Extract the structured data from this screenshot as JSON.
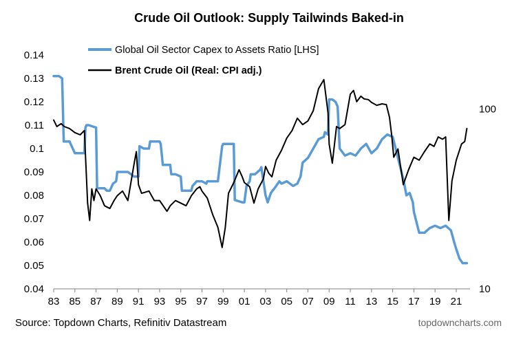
{
  "chart_data": {
    "type": "line",
    "title": "Crude Oil Outlook: Supply Tailwinds Baked-in",
    "source": "Source: Topdown Charts, Refinitiv Datastream",
    "brand": "topdowncharts.com",
    "x_ticks": [
      "83",
      "85",
      "87",
      "89",
      "91",
      "93",
      "95",
      "97",
      "99",
      "01",
      "03",
      "05",
      "07",
      "09",
      "11",
      "13",
      "15",
      "17",
      "19",
      "21"
    ],
    "x_range": [
      1983,
      2022.3
    ],
    "y_left": {
      "ticks": [
        "0.04",
        "0.05",
        "0.06",
        "0.07",
        "0.08",
        "0.09",
        "0.1",
        "0.11",
        "0.12",
        "0.13",
        "0.14"
      ],
      "range": [
        0.04,
        0.14
      ]
    },
    "y_right": {
      "ticks": [
        "10",
        "100"
      ],
      "range": [
        10,
        200
      ],
      "scale": "log"
    },
    "legend_placement": "top-center",
    "grid": false,
    "series": [
      {
        "name": "Global Oil Sector Capex to Assets Ratio [LHS]",
        "axis": "left",
        "color": "#5B9BD5",
        "x": [
          1983.0,
          1983.5,
          1983.8,
          1983.95,
          1984.5,
          1984.6,
          1985.0,
          1985.9,
          1986.0,
          1986.1,
          1986.3,
          1987.0,
          1987.1,
          1987.8,
          1988.0,
          1988.3,
          1988.6,
          1988.9,
          1989.0,
          1990.0,
          1990.3,
          1990.6,
          1991.0,
          1991.1,
          1991.5,
          1992.0,
          1992.1,
          1993.0,
          1993.1,
          1993.3,
          1993.5,
          1994.0,
          1994.1,
          1994.5,
          1995.0,
          1995.1,
          1996.0,
          1996.1,
          1996.5,
          1997.0,
          1997.4,
          1997.5,
          1998.0,
          1998.5,
          1998.9,
          1999.0,
          1999.3,
          2000.0,
          2000.1,
          2000.8,
          2001.0,
          2001.2,
          2001.5,
          2001.6,
          2002.0,
          2002.5,
          2002.6,
          2003.0,
          2003.2,
          2003.5,
          2004.0,
          2004.3,
          2004.5,
          2005.0,
          2005.3,
          2005.6,
          2006.0,
          2006.3,
          2006.5,
          2007.0,
          2007.5,
          2008.0,
          2008.5,
          2008.6,
          2008.9,
          2009.0,
          2009.3,
          2009.6,
          2009.8,
          2010.0,
          2010.5,
          2011.0,
          2011.5,
          2012.0,
          2012.5,
          2013.0,
          2013.5,
          2014.0,
          2014.5,
          2015.0,
          2015.5,
          2016.0,
          2016.3,
          2016.6,
          2016.9,
          2017.0,
          2017.5,
          2018.0,
          2018.5,
          2019.0,
          2019.5,
          2020.0,
          2020.5,
          2020.8,
          2021.0,
          2021.3,
          2021.6,
          2022.0
        ],
        "values": [
          0.131,
          0.131,
          0.13,
          0.103,
          0.103,
          0.102,
          0.098,
          0.098,
          0.109,
          0.11,
          0.11,
          0.109,
          0.083,
          0.083,
          0.082,
          0.082,
          0.085,
          0.086,
          0.09,
          0.09,
          0.089,
          0.088,
          0.088,
          0.101,
          0.1,
          0.1,
          0.103,
          0.103,
          0.102,
          0.093,
          0.093,
          0.093,
          0.089,
          0.089,
          0.088,
          0.082,
          0.082,
          0.084,
          0.086,
          0.086,
          0.085,
          0.086,
          0.086,
          0.086,
          0.101,
          0.102,
          0.102,
          0.102,
          0.078,
          0.077,
          0.077,
          0.084,
          0.086,
          0.089,
          0.089,
          0.091,
          0.092,
          0.08,
          0.077,
          0.081,
          0.084,
          0.086,
          0.085,
          0.086,
          0.085,
          0.084,
          0.085,
          0.088,
          0.094,
          0.096,
          0.1,
          0.104,
          0.105,
          0.107,
          0.106,
          0.121,
          0.121,
          0.12,
          0.118,
          0.1,
          0.097,
          0.098,
          0.097,
          0.1,
          0.102,
          0.098,
          0.1,
          0.104,
          0.106,
          0.105,
          0.096,
          0.087,
          0.08,
          0.081,
          0.077,
          0.073,
          0.064,
          0.064,
          0.066,
          0.067,
          0.066,
          0.067,
          0.065,
          0.06,
          0.057,
          0.053,
          0.051,
          0.051
        ]
      },
      {
        "name": "Brent Crude Oil (Real: CPI adj.)",
        "axis": "right",
        "color": "#000000",
        "x": [
          1983.0,
          1983.3,
          1983.7,
          1984.0,
          1984.5,
          1985.0,
          1985.5,
          1985.9,
          1986.2,
          1986.4,
          1986.6,
          1986.8,
          1987.0,
          1987.4,
          1987.8,
          1988.3,
          1988.7,
          1989.0,
          1989.5,
          1990.0,
          1990.6,
          1990.8,
          1991.0,
          1991.3,
          1992.0,
          1992.5,
          1993.0,
          1993.7,
          1994.0,
          1994.5,
          1995.0,
          1995.5,
          1996.0,
          1996.5,
          1996.8,
          1997.0,
          1997.5,
          1998.0,
          1998.5,
          1998.9,
          1999.2,
          1999.5,
          2000.0,
          2000.5,
          2000.8,
          2001.0,
          2001.5,
          2001.9,
          2002.3,
          2002.8,
          2003.0,
          2003.3,
          2003.6,
          2004.0,
          2004.5,
          2005.0,
          2005.5,
          2006.0,
          2006.5,
          2007.0,
          2007.5,
          2008.0,
          2008.5,
          2008.9,
          2009.0,
          2009.3,
          2009.7,
          2010.0,
          2010.5,
          2011.0,
          2011.3,
          2011.6,
          2012.0,
          2012.3,
          2012.7,
          2013.0,
          2013.5,
          2014.0,
          2014.4,
          2014.7,
          2014.9,
          2015.1,
          2015.5,
          2016.0,
          2016.5,
          2017.0,
          2017.5,
          2018.0,
          2018.5,
          2018.9,
          2019.3,
          2019.7,
          2020.0,
          2020.3,
          2020.6,
          2021.0,
          2021.5,
          2021.8,
          2022.0
        ],
        "values": [
          87,
          80,
          83,
          80,
          78,
          74,
          72,
          76,
          30,
          24,
          36,
          31,
          36,
          33,
          29,
          28,
          31,
          33,
          35,
          31,
          50,
          58,
          38,
          34,
          35,
          31,
          31,
          27,
          29,
          31,
          30,
          29,
          33,
          36,
          37,
          35,
          32,
          26,
          22,
          17,
          22,
          34,
          39,
          46,
          42,
          39,
          37,
          30,
          36,
          41,
          48,
          44,
          42,
          52,
          59,
          69,
          76,
          89,
          82,
          86,
          98,
          130,
          146,
          95,
          64,
          50,
          80,
          78,
          82,
          121,
          127,
          110,
          118,
          114,
          113,
          109,
          105,
          107,
          106,
          90,
          72,
          54,
          60,
          38,
          46,
          54,
          52,
          58,
          64,
          62,
          70,
          68,
          70,
          24,
          40,
          52,
          64,
          66,
          78
        ]
      }
    ]
  }
}
